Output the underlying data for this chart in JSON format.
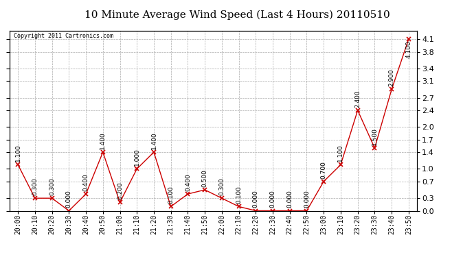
{
  "title": "10 Minute Average Wind Speed (Last 4 Hours) 20110510",
  "copyright": "Copyright 2011 Cartronics.com",
  "x_labels": [
    "20:00",
    "20:10",
    "20:20",
    "20:30",
    "20:40",
    "20:50",
    "21:00",
    "21:10",
    "21:20",
    "21:30",
    "21:40",
    "21:50",
    "22:00",
    "22:10",
    "22:20",
    "22:30",
    "22:40",
    "22:50",
    "23:00",
    "23:10",
    "23:20",
    "23:30",
    "23:40",
    "23:50"
  ],
  "y_values": [
    1.1,
    0.3,
    0.3,
    0.0,
    0.4,
    1.4,
    0.2,
    1.0,
    1.4,
    0.1,
    0.4,
    0.5,
    0.3,
    0.1,
    0.0,
    0.0,
    0.0,
    0.0,
    0.7,
    1.1,
    2.4,
    1.5,
    2.9,
    4.1
  ],
  "line_color": "#cc0000",
  "marker_color": "#cc0000",
  "bg_color": "#ffffff",
  "grid_color": "#aaaaaa",
  "ylim": [
    0.0,
    4.3
  ],
  "yticks": [
    0.0,
    0.3,
    0.7,
    1.0,
    1.4,
    1.7,
    2.0,
    2.4,
    2.7,
    3.1,
    3.4,
    3.8,
    4.1
  ],
  "title_fontsize": 11,
  "label_fontsize": 7,
  "annot_fontsize": 6.5
}
